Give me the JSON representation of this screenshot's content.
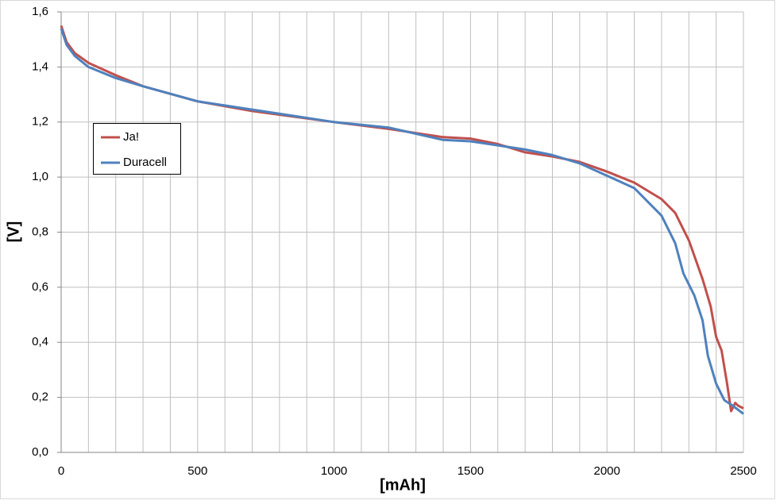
{
  "chart_data": {
    "type": "line",
    "xlabel": "[mAh]",
    "ylabel": "[V]",
    "xlim": [
      0,
      2500
    ],
    "xticks": [
      0,
      500,
      1000,
      1500,
      2000,
      2500
    ],
    "xgrid": [
      0,
      100,
      200,
      300,
      400,
      500,
      600,
      700,
      800,
      900,
      1000,
      1100,
      1200,
      1300,
      1400,
      1500,
      1600,
      1700,
      1800,
      1900,
      2000,
      2100,
      2200,
      2300,
      2400,
      2500
    ],
    "ylim": [
      0,
      1.6
    ],
    "yticks": [
      {
        "value": 0,
        "label": "0,0"
      },
      {
        "value": 0.2,
        "label": "0,2"
      },
      {
        "value": 0.4,
        "label": "0,4"
      },
      {
        "value": 0.6,
        "label": "0,6"
      },
      {
        "value": 0.8,
        "label": "0,8"
      },
      {
        "value": 1.0,
        "label": "1,0"
      },
      {
        "value": 1.2,
        "label": "1,2"
      },
      {
        "value": 1.4,
        "label": "1,4"
      },
      {
        "value": 1.6,
        "label": "1,6"
      }
    ],
    "grid": true,
    "legend": "left",
    "series": [
      {
        "name": "Ja!",
        "color": "#c0504d",
        "x": [
          0,
          20,
          50,
          100,
          200,
          300,
          500,
          700,
          1000,
          1200,
          1400,
          1500,
          1600,
          1700,
          1800,
          1900,
          2000,
          2100,
          2200,
          2250,
          2300,
          2350,
          2380,
          2400,
          2420,
          2440,
          2455,
          2470,
          2480,
          2500
        ],
        "values": [
          1.55,
          1.49,
          1.45,
          1.415,
          1.37,
          1.33,
          1.275,
          1.24,
          1.2,
          1.175,
          1.145,
          1.14,
          1.12,
          1.09,
          1.075,
          1.055,
          1.02,
          0.98,
          0.92,
          0.87,
          0.77,
          0.63,
          0.53,
          0.42,
          0.37,
          0.25,
          0.15,
          0.18,
          0.17,
          0.16
        ]
      },
      {
        "name": "Duracell",
        "color": "#4f81bd",
        "x": [
          0,
          20,
          50,
          100,
          200,
          300,
          500,
          700,
          1000,
          1200,
          1400,
          1500,
          1600,
          1700,
          1800,
          1900,
          2000,
          2100,
          2200,
          2250,
          2280,
          2320,
          2350,
          2370,
          2400,
          2430,
          2460,
          2500
        ],
        "values": [
          1.54,
          1.48,
          1.44,
          1.4,
          1.36,
          1.33,
          1.275,
          1.245,
          1.2,
          1.18,
          1.135,
          1.13,
          1.115,
          1.1,
          1.08,
          1.05,
          1.005,
          0.96,
          0.86,
          0.76,
          0.65,
          0.57,
          0.48,
          0.35,
          0.25,
          0.19,
          0.17,
          0.14
        ]
      }
    ]
  }
}
